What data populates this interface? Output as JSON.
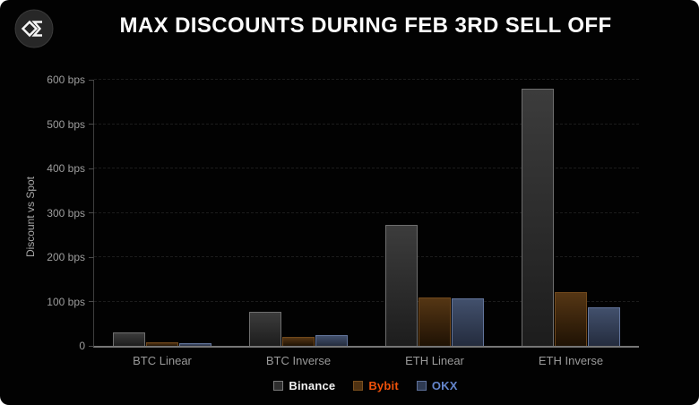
{
  "app": {
    "title": "MAX DISCOUNTS DURING FEB 3RD SELL OFF",
    "logo_icon": "sigma-diamond-logo",
    "background_color": "#020202"
  },
  "chart_data": {
    "type": "bar",
    "title": "MAX DISCOUNTS DURING FEB 3RD SELL OFF",
    "xlabel": "",
    "ylabel": "Discount vs Spot",
    "unit": "bps",
    "ylim": [
      0,
      600
    ],
    "grid": "horizontal-dashed",
    "legend_position": "bottom-center",
    "categories": [
      "BTC Linear",
      "BTC Inverse",
      "ETH Linear",
      "ETH Inverse"
    ],
    "yticks": [
      {
        "value": 600,
        "label": "600 bps"
      },
      {
        "value": 500,
        "label": "500 bps"
      },
      {
        "value": 400,
        "label": "400 bps"
      },
      {
        "value": 300,
        "label": "300 bps"
      },
      {
        "value": 200,
        "label": "200 bps"
      },
      {
        "value": 100,
        "label": "100 bps"
      },
      {
        "value": 0,
        "label": "0"
      }
    ],
    "series": [
      {
        "name": "Binance",
        "values": [
          30,
          76,
          272,
          580
        ],
        "fill_top": "#3c3c3c",
        "fill_bottom": "#1d1d1d",
        "border": "#6e6e6e",
        "label_color": "#f2f2f2",
        "swatch_fill": "#2e2e2e",
        "swatch_border": "#7a7a7a"
      },
      {
        "name": "Bybit",
        "values": [
          8,
          20,
          110,
          122
        ],
        "fill_top": "#553614",
        "fill_bottom": "#1f1204",
        "border": "#70481c",
        "label_color": "#f0520a",
        "swatch_fill": "#4f3212",
        "swatch_border": "#7a4f1e"
      },
      {
        "name": "OKX",
        "values": [
          6,
          24,
          108,
          86
        ],
        "fill_top": "#42506c",
        "fill_bottom": "#242c3e",
        "border": "#62749a",
        "label_color": "#6485cb",
        "swatch_fill": "#2e3a52",
        "swatch_border": "#5d7099"
      }
    ]
  }
}
